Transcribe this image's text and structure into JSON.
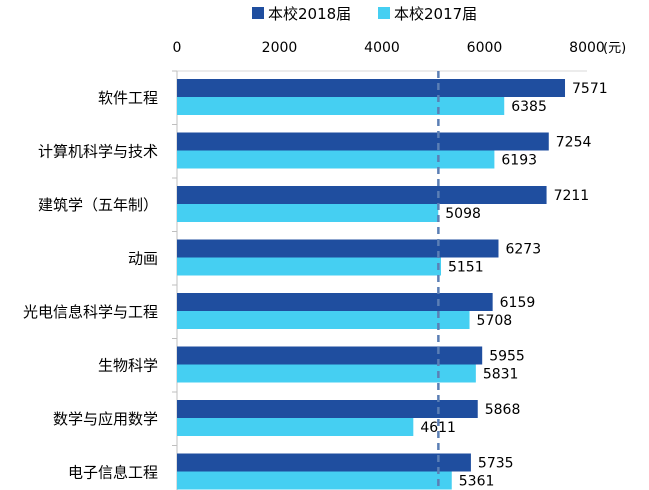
{
  "chart_data": {
    "type": "bar",
    "orientation": "horizontal",
    "categories": [
      "软件工程",
      "计算机科学与技术",
      "建筑学（五年制）",
      "动画",
      "光电信息科学与工程",
      "生物科学",
      "数学与应用数学",
      "电子信息工程"
    ],
    "series": [
      {
        "name": "本校2018届",
        "values": [
          7571,
          7254,
          7211,
          6273,
          6159,
          5955,
          5868,
          5735
        ],
        "color": "#1F4E9F"
      },
      {
        "name": "本校2017届",
        "values": [
          6385,
          6193,
          5098,
          5151,
          5708,
          5831,
          4611,
          5361
        ],
        "color": "#45CFF2"
      }
    ],
    "xlim": [
      0,
      8000
    ],
    "xticks": [
      "0",
      "2000",
      "4000",
      "6000",
      "8000"
    ],
    "x_unit": "(元)",
    "axis_position": "top",
    "legend_position": "top",
    "reference_line": {
      "value": 5100,
      "style": "dashed",
      "color": "#5B7FB5"
    },
    "grid": false
  }
}
